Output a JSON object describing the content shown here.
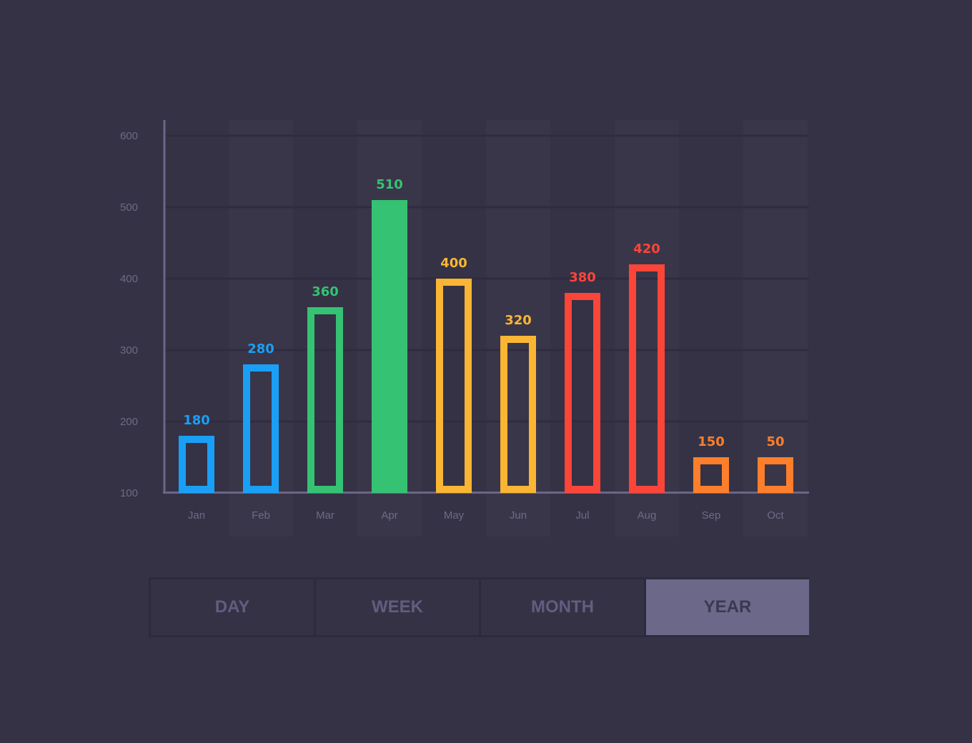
{
  "chart_data": {
    "type": "bar",
    "categories": [
      "Jan",
      "Feb",
      "Mar",
      "Apr",
      "May",
      "Jun",
      "Jul",
      "Aug",
      "Sep",
      "Oct"
    ],
    "values": [
      180,
      280,
      360,
      510,
      400,
      320,
      380,
      420,
      150,
      50
    ],
    "bar_colors": [
      "#1a9ff6",
      "#1a9ff6",
      "#35c273",
      "#35c273",
      "#fbb534",
      "#fbb534",
      "#fb4539",
      "#fb4539",
      "#fd7f2c",
      "#fd7f2c"
    ],
    "highlighted_category": "Apr",
    "ylim": [
      100,
      600
    ],
    "yticks": [
      100,
      200,
      300,
      400,
      500,
      600
    ],
    "grid": true,
    "title": "",
    "xlabel": "",
    "ylabel": ""
  },
  "tabs": [
    {
      "label": "DAY",
      "active": false
    },
    {
      "label": "WEEK",
      "active": false
    },
    {
      "label": "MONTH",
      "active": false
    },
    {
      "label": "YEAR",
      "active": true
    }
  ],
  "colors": {
    "background": "#353245",
    "axis": "#6a6689",
    "tick_text": "#6e6a88",
    "active_tab": "#6c6889"
  }
}
